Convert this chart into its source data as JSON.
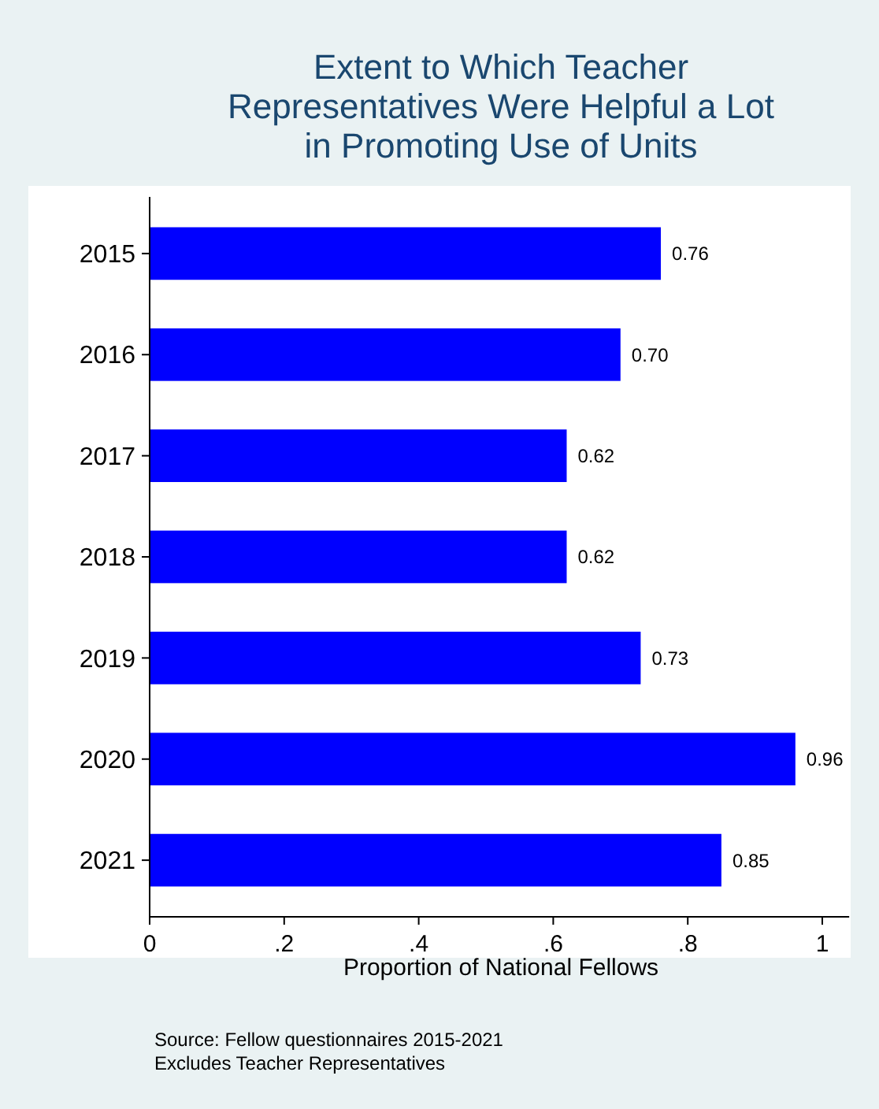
{
  "chart_data": {
    "type": "bar",
    "orientation": "horizontal",
    "title": "Extent to Which Teacher\nRepresentatives Were Helpful a Lot\nin Promoting Use of Units",
    "xlabel": "Proportion of National Fellows",
    "categories": [
      "2015",
      "2016",
      "2017",
      "2018",
      "2019",
      "2020",
      "2021"
    ],
    "values": [
      0.76,
      0.7,
      0.62,
      0.62,
      0.73,
      0.96,
      0.85
    ],
    "color": "#0000ff",
    "value_labels": [
      "0.76",
      "0.70",
      "0.62",
      "0.62",
      "0.73",
      "0.96",
      "0.85"
    ],
    "xlim": [
      0,
      1.04
    ],
    "xticks": [
      0,
      {
        "value": 0.2,
        "label": ".2"
      },
      {
        "value": 0.4,
        "label": ".4"
      },
      {
        "value": 0.6,
        "label": ".6"
      },
      {
        "value": 0.8,
        "label": ".8"
      },
      1
    ],
    "grid": false,
    "annotations": [
      "Source: Fellow questionnaires 2015-2021",
      "Excludes Teacher Representatives"
    ]
  }
}
